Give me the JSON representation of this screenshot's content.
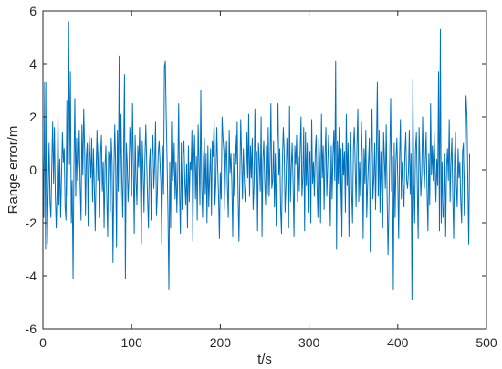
{
  "chart_data": {
    "type": "line",
    "title": "",
    "xlabel": "t/s",
    "ylabel": "Range error/m",
    "xlim": [
      0,
      500
    ],
    "ylim": [
      -6,
      6
    ],
    "xticks": [
      0,
      100,
      200,
      300,
      400,
      500
    ],
    "yticks": [
      -6,
      -4,
      -2,
      0,
      2,
      4,
      6
    ],
    "xtick_labels": [
      "0",
      "100",
      "200",
      "300",
      "400",
      "500"
    ],
    "ytick_labels": [
      "-6",
      "-4",
      "-2",
      "0",
      "2",
      "4",
      "6"
    ],
    "grid": false,
    "line_color": "#0072BD",
    "series": [
      {
        "x_start": 0,
        "x_step": 1,
        "values": [
          0.6,
          -1.8,
          3.3,
          -3.0,
          3.3,
          -2.8,
          -0.6,
          1.0,
          -1.2,
          -1.8,
          0.2,
          1.8,
          -0.5,
          1.6,
          -1.0,
          -2.2,
          -0.8,
          2.1,
          -1.3,
          0.4,
          -1.8,
          -0.2,
          1.4,
          0.3,
          0.8,
          -1.4,
          -1.9,
          2.6,
          -1.0,
          5.6,
          0.2,
          3.7,
          -2.0,
          -0.4,
          -4.1,
          0.2,
          2.7,
          -1.0,
          1.2,
          -0.4,
          0.2,
          1.5,
          -0.6,
          -1.9,
          1.7,
          -0.2,
          2.3,
          0.9,
          -1.7,
          0.5,
          1.0,
          -2.1,
          1.4,
          0.6,
          -0.3,
          1.2,
          -1.2,
          0.8,
          -0.7,
          -2.3,
          0.0,
          1.5,
          -0.4,
          1.0,
          -1.8,
          0.6,
          1.3,
          -0.8,
          0.3,
          -2.2,
          0.1,
          0.9,
          -1.0,
          -2.5,
          0.7,
          0.4,
          -1.6,
          1.2,
          0.3,
          -3.5,
          -0.2,
          1.7,
          0.2,
          -2.9,
          1.5,
          -0.8,
          4.3,
          -1.2,
          2.1,
          -0.3,
          -1.8,
          0.6,
          3.6,
          -4.1,
          1.0,
          0.3,
          -1.2,
          -0.3,
          1.6,
          0.8,
          -1.0,
          2.5,
          0.2,
          -2.4,
          1.3,
          -0.4,
          -1.3,
          0.9,
          0.1,
          1.6,
          -0.6,
          -2.8,
          1.1,
          -0.1,
          -1.6,
          0.4,
          1.7,
          0.3,
          -1.1,
          -2.2,
          0.2,
          0.8,
          -1.9,
          0.5,
          1.3,
          -0.7,
          0.2,
          1.8,
          -1.7,
          -0.9,
          0.6,
          1.1,
          0.3,
          -0.5,
          -2.8,
          0.9,
          -0.9,
          3.9,
          4.1,
          2.0,
          0.3,
          -1.7,
          -4.5,
          0.3,
          -2.2,
          1.8,
          -0.4,
          -0.2,
          1.0,
          -1.1,
          0.3,
          -1.6,
          -0.3,
          2.5,
          -0.8,
          -2.4,
          1.0,
          -1.5,
          0.6,
          1.1,
          -0.5,
          -1.3,
          0.2,
          -2.2,
          0.9,
          -1.2,
          0.3,
          0.0,
          1.5,
          -2.7,
          0.3,
          1.3,
          -1.1,
          0.5,
          -1.9,
          1.7,
          0.3,
          -1.3,
          3.0,
          -0.6,
          -1.8,
          0.4,
          1.2,
          -0.9,
          0.6,
          -2.0,
          0.9,
          -1.4,
          -0.2,
          0.8,
          -1.7,
          1.1,
          0.5,
          1.9,
          -1.3,
          -0.4,
          1.6,
          0.2,
          -1.0,
          -2.6,
          -0.1,
          -1.1,
          2.0,
          1.2,
          0.7,
          -1.5,
          0.3,
          1.1,
          -0.7,
          -1.8,
          1.5,
          -0.1,
          0.6,
          -0.5,
          -2.5,
          0.6,
          -1.0,
          1.3,
          0.2,
          1.8,
          -0.9,
          -2.7,
          -0.3,
          1.9,
          0.4,
          -1.1,
          0.8,
          -0.3,
          -1.2,
          -0.5,
          1.4,
          -0.3,
          2.1,
          -1.0,
          0.9,
          -0.3,
          1.2,
          -1.5,
          -0.6,
          2.3,
          -0.2,
          0.7,
          -2.3,
          1.0,
          0.3,
          -0.8,
          2.0,
          -2.5,
          0.4,
          1.1,
          -0.4,
          -1.3,
          0.9,
          -0.9,
          1.6,
          -1.0,
          0.3,
          2.5,
          -0.7,
          -0.4,
          1.1,
          -1.4,
          0.6,
          -2.1,
          0.9,
          2.5,
          -0.2,
          0.8,
          -1.5,
          -2.4,
          0.4,
          1.6,
          0.7,
          -1.6,
          -0.6,
          1.2,
          0.3,
          -2.2,
          2.4,
          -1.2,
          0.1,
          1.0,
          -0.5,
          -2.5,
          0.9,
          0.2,
          1.3,
          -1.2,
          0.5,
          -0.8,
          0.8,
          2.0,
          -1.0,
          -0.3,
          1.6,
          -2.3,
          1.4,
          -0.6,
          1.0,
          -1.6,
          0.2,
          0.7,
          -2.0,
          1.9,
          -0.5,
          0.3,
          -1.0,
          0.6,
          1.3,
          -0.6,
          -1.8,
          1.2,
          0.4,
          -2.0,
          2.1,
          -0.3,
          0.9,
          -1.5,
          0.5,
          1.6,
          -1.0,
          0.1,
          1.3,
          -0.5,
          -2.1,
          0.9,
          -1.1,
          0.6,
          1.5,
          -0.4,
          4.1,
          -3.0,
          1.1,
          -0.5,
          1.6,
          -1.7,
          0.8,
          -2.5,
          1.0,
          -0.2,
          0.7,
          -1.6,
          2.1,
          -0.6,
          1.0,
          -2.5,
          0.5,
          1.4,
          -0.8,
          -2.0,
          0.8,
          1.6,
          0.2,
          -1.4,
          0.9,
          2.3,
          -1.2,
          0.3,
          -1.0,
          1.8,
          0.5,
          -2.6,
          0.8,
          -0.5,
          1.5,
          -1.8,
          -0.6,
          0.3,
          1.2,
          -3.1,
          0.6,
          2.3,
          -1.1,
          -0.3,
          1.0,
          -1.5,
          0.9,
          3.3,
          -1.0,
          1.5,
          -1.6,
          0.7,
          -0.8,
          -2.2,
          1.4,
          0.4,
          -0.7,
          1.7,
          -1.0,
          -3.2,
          -1.5,
          0.6,
          2.7,
          -0.8,
          0.5,
          -4.5,
          1.0,
          -1.8,
          0.4,
          1.2,
          -0.4,
          -2.6,
          0.4,
          1.9,
          -1.1,
          0.3,
          -0.6,
          -1.4,
          0.6,
          1.4,
          -0.4,
          -0.7,
          -0.1,
          1.5,
          -0.9,
          0.6,
          -4.9,
          3.4,
          -0.5,
          -2.0,
          0.8,
          1.4,
          -0.6,
          -2.6,
          1.6,
          0.3,
          -1.0,
          -0.2,
          2.0,
          0.1,
          -0.7,
          0.4,
          1.4,
          -0.8,
          -2.3,
          0.6,
          -1.3,
          2.5,
          -0.2,
          0.9,
          -0.4,
          1.4,
          0.2,
          -1.2,
          0.4,
          -0.6,
          3.7,
          -2.3,
          5.3,
          -2.0,
          0.3,
          -1.8,
          -1.4,
          0.6,
          -2.5,
          0.1,
          0.8,
          -0.4,
          1.9,
          -1.2,
          0.3,
          1.2,
          -1.0,
          -2.6,
          0.5,
          1.4,
          -0.6,
          -1.4,
          0.8,
          -0.3,
          0.3,
          -1.2,
          -2.0,
          0.7,
          1.0,
          -1.7,
          0.9,
          2.8,
          2.0,
          -0.5,
          -2.8,
          0.6
        ]
      }
    ]
  }
}
